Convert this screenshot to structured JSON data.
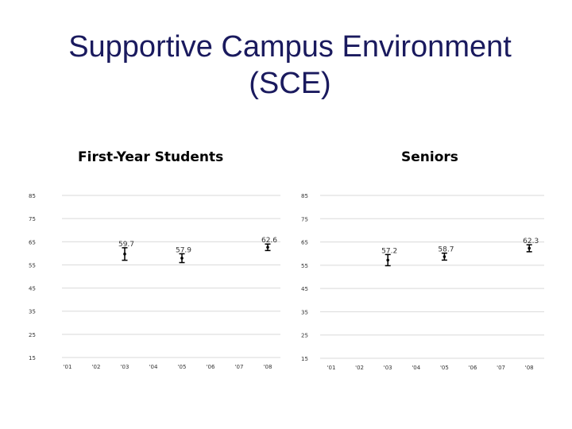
{
  "slide": {
    "title_line1": "Supportive Campus Environment",
    "title_line2": "(SCE)"
  },
  "chart_data": [
    {
      "type": "scatter",
      "title": "First-Year Students",
      "categories": [
        "'01",
        "'02",
        "'03",
        "'04",
        "'05",
        "'06",
        "'07",
        "'08"
      ],
      "yticks": [
        85,
        75,
        65,
        55,
        45,
        35,
        25,
        15
      ],
      "ylim": [
        15,
        85
      ],
      "grid": true,
      "series": [
        {
          "points": [
            {
              "x": "'03",
              "y": 59.7,
              "low": 57.0,
              "high": 62.4,
              "label": "59.7"
            },
            {
              "x": "'05",
              "y": 57.9,
              "low": 56.0,
              "high": 59.8,
              "label": "57.9"
            },
            {
              "x": "'08",
              "y": 62.6,
              "low": 61.2,
              "high": 64.0,
              "label": "62.6"
            }
          ]
        }
      ]
    },
    {
      "type": "scatter",
      "title": "Seniors",
      "categories": [
        "'01",
        "'02",
        "'03",
        "'04",
        "'05",
        "'06",
        "'07",
        "'08"
      ],
      "yticks": [
        85,
        75,
        65,
        55,
        45,
        35,
        25,
        15
      ],
      "ylim": [
        15,
        85
      ],
      "grid": true,
      "series": [
        {
          "points": [
            {
              "x": "'03",
              "y": 57.2,
              "low": 54.8,
              "high": 59.6,
              "label": "57.2"
            },
            {
              "x": "'05",
              "y": 58.7,
              "low": 57.2,
              "high": 60.2,
              "label": "58.7"
            },
            {
              "x": "'08",
              "y": 62.3,
              "low": 60.8,
              "high": 63.8,
              "label": "62.3"
            }
          ]
        }
      ]
    }
  ]
}
